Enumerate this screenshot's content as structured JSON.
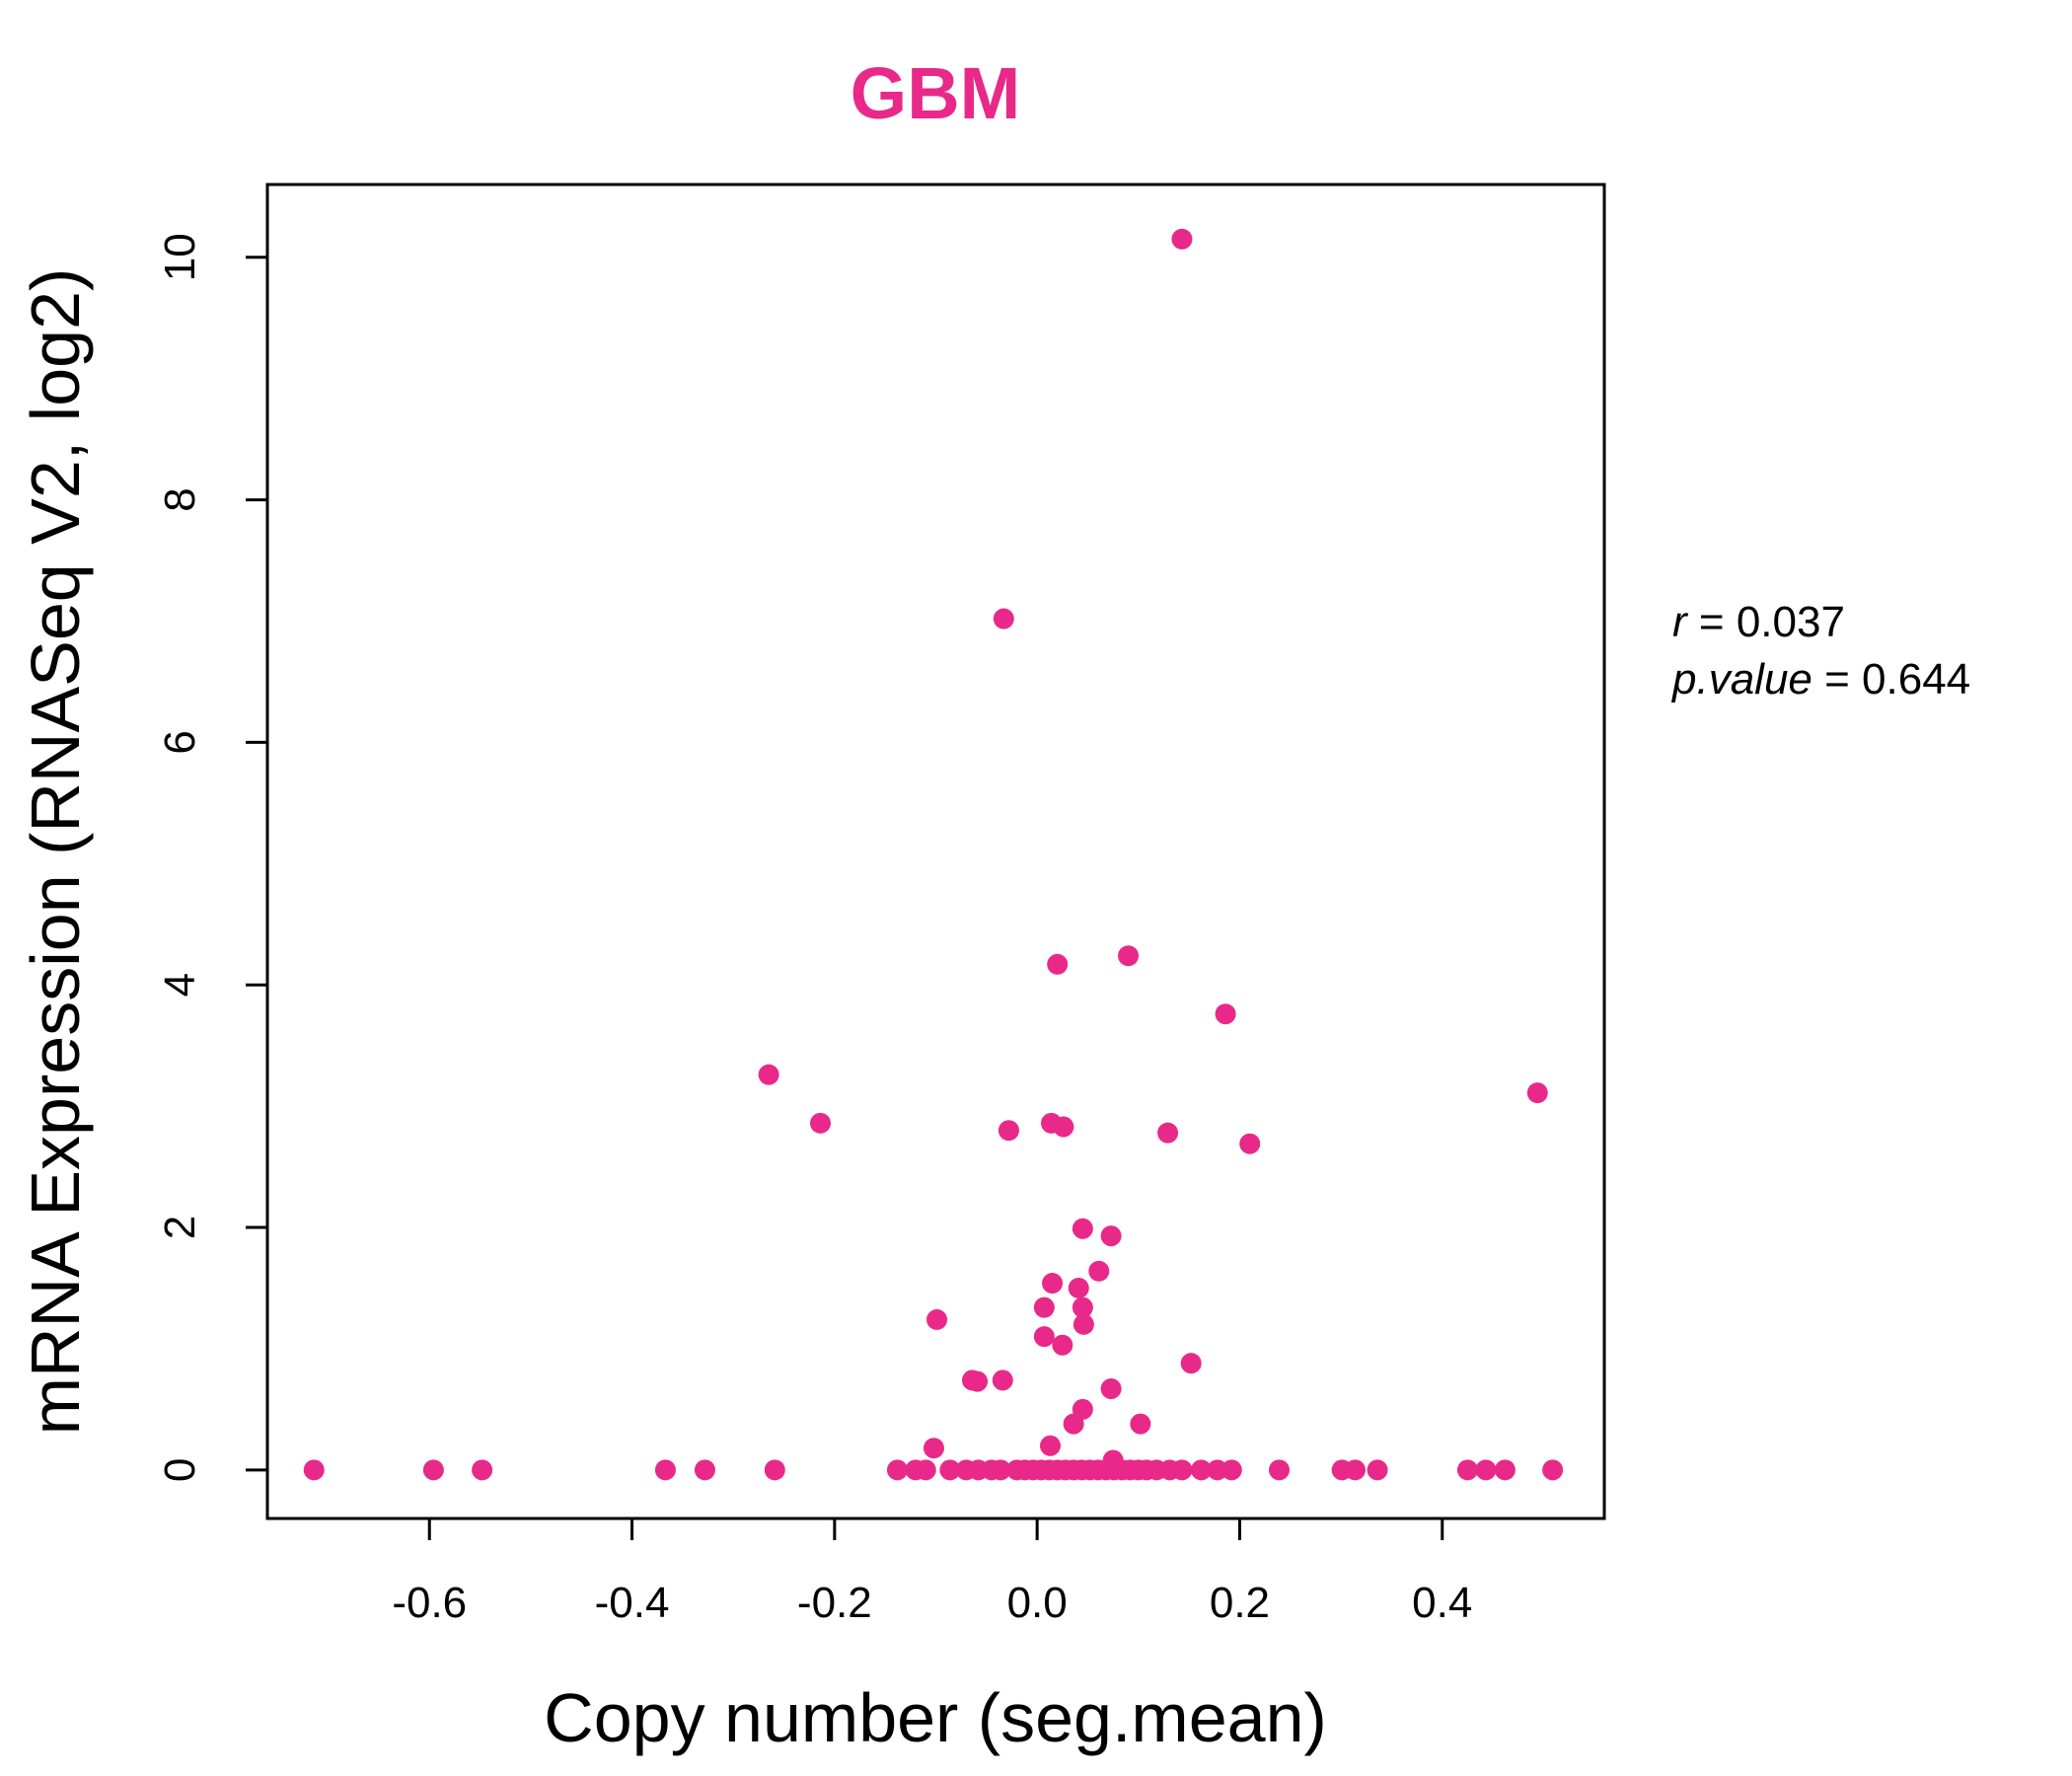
{
  "chart_data": {
    "type": "scatter",
    "title": "GBM",
    "xlabel": "Copy number (seg.mean)",
    "ylabel": "mRNA Expression (RNASeq V2, log2)",
    "xlim": [
      -0.76,
      0.56
    ],
    "ylim": [
      -0.4,
      10.6
    ],
    "xticks": [
      "-0.6",
      "-0.4",
      "-0.2",
      "0.0",
      "0.2",
      "0.4"
    ],
    "yticks": [
      "0",
      "2",
      "4",
      "6",
      "8",
      "10"
    ],
    "grid": false,
    "point_color": "#e8298a",
    "stats": {
      "r_key": "r",
      "r_value": "0.037",
      "p_key": "p.value",
      "p_value": "0.644"
    },
    "points": [
      {
        "x": 0.143,
        "y": 10.15
      },
      {
        "x": -0.033,
        "y": 7.02
      },
      {
        "x": 0.09,
        "y": 4.24
      },
      {
        "x": 0.02,
        "y": 4.17
      },
      {
        "x": 0.186,
        "y": 3.76
      },
      {
        "x": -0.265,
        "y": 3.26
      },
      {
        "x": 0.494,
        "y": 3.11
      },
      {
        "x": -0.214,
        "y": 2.86
      },
      {
        "x": 0.014,
        "y": 2.86
      },
      {
        "x": 0.026,
        "y": 2.83
      },
      {
        "x": -0.028,
        "y": 2.8
      },
      {
        "x": 0.129,
        "y": 2.78
      },
      {
        "x": 0.21,
        "y": 2.69
      },
      {
        "x": 0.045,
        "y": 1.99
      },
      {
        "x": 0.073,
        "y": 1.93
      },
      {
        "x": 0.061,
        "y": 1.64
      },
      {
        "x": 0.015,
        "y": 1.54
      },
      {
        "x": 0.041,
        "y": 1.5
      },
      {
        "x": 0.007,
        "y": 1.34
      },
      {
        "x": 0.045,
        "y": 1.34
      },
      {
        "x": -0.099,
        "y": 1.24
      },
      {
        "x": 0.046,
        "y": 1.2
      },
      {
        "x": 0.007,
        "y": 1.1
      },
      {
        "x": 0.025,
        "y": 1.03
      },
      {
        "x": 0.152,
        "y": 0.88
      },
      {
        "x": -0.064,
        "y": 0.74
      },
      {
        "x": -0.059,
        "y": 0.73
      },
      {
        "x": -0.034,
        "y": 0.74
      },
      {
        "x": 0.073,
        "y": 0.67
      },
      {
        "x": 0.045,
        "y": 0.5
      },
      {
        "x": 0.102,
        "y": 0.38
      },
      {
        "x": 0.036,
        "y": 0.38
      },
      {
        "x": 0.013,
        "y": 0.2
      },
      {
        "x": -0.102,
        "y": 0.18
      },
      {
        "x": 0.075,
        "y": 0.08
      },
      {
        "x": -0.714,
        "y": 0
      },
      {
        "x": -0.596,
        "y": 0
      },
      {
        "x": -0.548,
        "y": 0
      },
      {
        "x": -0.367,
        "y": 0
      },
      {
        "x": -0.328,
        "y": 0
      },
      {
        "x": -0.259,
        "y": 0
      },
      {
        "x": -0.138,
        "y": 0
      },
      {
        "x": -0.12,
        "y": 0
      },
      {
        "x": -0.11,
        "y": 0
      },
      {
        "x": -0.086,
        "y": 0
      },
      {
        "x": -0.07,
        "y": 0
      },
      {
        "x": -0.058,
        "y": 0
      },
      {
        "x": -0.045,
        "y": 0
      },
      {
        "x": -0.036,
        "y": 0
      },
      {
        "x": -0.02,
        "y": 0
      },
      {
        "x": -0.012,
        "y": 0
      },
      {
        "x": -0.004,
        "y": 0
      },
      {
        "x": 0.004,
        "y": 0
      },
      {
        "x": 0.012,
        "y": 0
      },
      {
        "x": 0.02,
        "y": 0
      },
      {
        "x": 0.028,
        "y": 0
      },
      {
        "x": 0.036,
        "y": 0
      },
      {
        "x": 0.044,
        "y": 0
      },
      {
        "x": 0.052,
        "y": 0
      },
      {
        "x": 0.06,
        "y": 0
      },
      {
        "x": 0.068,
        "y": 0
      },
      {
        "x": 0.076,
        "y": 0
      },
      {
        "x": 0.084,
        "y": 0
      },
      {
        "x": 0.092,
        "y": 0
      },
      {
        "x": 0.1,
        "y": 0
      },
      {
        "x": 0.108,
        "y": 0
      },
      {
        "x": 0.118,
        "y": 0
      },
      {
        "x": 0.131,
        "y": 0
      },
      {
        "x": 0.143,
        "y": 0
      },
      {
        "x": 0.162,
        "y": 0
      },
      {
        "x": 0.178,
        "y": 0
      },
      {
        "x": 0.192,
        "y": 0
      },
      {
        "x": 0.239,
        "y": 0
      },
      {
        "x": 0.301,
        "y": 0
      },
      {
        "x": 0.314,
        "y": 0
      },
      {
        "x": 0.336,
        "y": 0
      },
      {
        "x": 0.425,
        "y": 0
      },
      {
        "x": 0.443,
        "y": 0
      },
      {
        "x": 0.462,
        "y": 0
      },
      {
        "x": 0.509,
        "y": 0
      }
    ]
  }
}
